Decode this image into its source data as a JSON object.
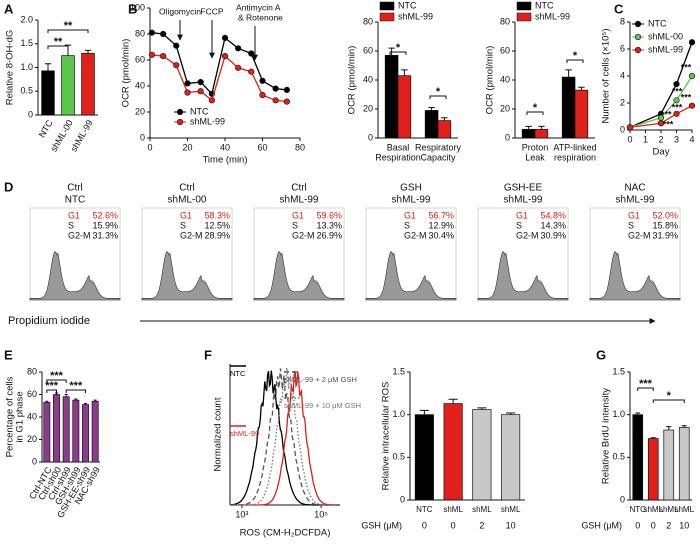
{
  "chart_data": [
    {
      "panel": "A",
      "type": "bar",
      "y_label": "Relative 8-OH-dG",
      "categories": [
        "NTC",
        "shML-00",
        "shML-99"
      ],
      "values": [
        0.93,
        1.25,
        1.3
      ],
      "errors": [
        0.15,
        0.22,
        0.06
      ],
      "colors": [
        "#000000",
        "#5cc64a",
        "#e0201b"
      ],
      "ylim": [
        0,
        2
      ],
      "yticks": [
        0,
        0.5,
        {
          "value": 1,
          "label": "1.0"
        },
        1.5,
        {
          "value": 2,
          "label": "2.0"
        }
      ],
      "annotations": [
        "**",
        "**"
      ]
    },
    {
      "panel": "B",
      "type": "line",
      "y_label": "OCR (pmol/min)",
      "x_label": "Time (min)",
      "x": [
        1,
        7,
        14,
        20,
        27,
        33,
        40,
        47,
        54,
        60,
        67,
        73
      ],
      "series": [
        {
          "name": "NTC",
          "color": "#000000",
          "values": [
            81,
            80,
            71,
            42,
            43,
            34,
            77,
            69,
            65,
            44,
            38,
            37
          ]
        },
        {
          "name": "shML-99",
          "color": "#e0201b",
          "values": [
            64,
            63,
            56,
            35,
            36,
            29,
            63,
            54,
            51,
            33,
            29,
            28
          ]
        }
      ],
      "xlim": [
        0,
        80
      ],
      "xticks": [
        0,
        20,
        40,
        60,
        80
      ],
      "ylim": [
        0,
        100
      ],
      "yticks": [
        0,
        20,
        40,
        60,
        80,
        100
      ],
      "annotations": [
        "Oligomycin",
        "FCCP",
        "Antimycin A",
        "& Rotenone"
      ]
    },
    {
      "type": "bar",
      "y_label": "OCR (pmol/min)",
      "categories": [
        [
          "Basal",
          "Respiration"
        ],
        [
          "Respiratory",
          "Capacity"
        ]
      ],
      "series": [
        {
          "name": "NTC",
          "color": "#000000",
          "values": [
            57,
            19
          ],
          "errors": [
            5,
            2
          ]
        },
        {
          "name": "shML-99",
          "color": "#e0201b",
          "values": [
            43,
            12
          ],
          "errors": [
            4,
            2
          ]
        }
      ],
      "ylim": [
        0,
        80
      ],
      "yticks": [
        0,
        20,
        40,
        60,
        80
      ],
      "annotations": [
        "*",
        "*"
      ]
    },
    {
      "type": "bar",
      "y_label": "OCR (pmol/min)",
      "categories": [
        [
          "Proton",
          "Leak"
        ],
        [
          "ATP-linked",
          "respiration"
        ]
      ],
      "series": [
        {
          "name": "NTC",
          "color": "#000000",
          "values": [
            6,
            42
          ],
          "errors": [
            2,
            5
          ]
        },
        {
          "name": "shML-99",
          "color": "#e0201b",
          "values": [
            6,
            33
          ],
          "errors": [
            2,
            2
          ]
        }
      ],
      "ylim": [
        0,
        80
      ],
      "yticks": [
        0,
        20,
        40,
        60,
        80
      ],
      "annotations": [
        "*",
        "*"
      ]
    },
    {
      "panel": "C",
      "type": "line",
      "y_label": "Number of cells (×10⁵)",
      "x_label": "Day",
      "x": [
        0,
        2,
        3,
        4
      ],
      "series": [
        {
          "name": "NTC",
          "color": "#000000",
          "values": [
            0.2,
            1.2,
            3.4,
            6.5
          ]
        },
        {
          "name": "shML-00",
          "color": "#5cc64a",
          "values": [
            0.2,
            0.9,
            2.2,
            4.0
          ]
        },
        {
          "name": "shML-99",
          "color": "#e0201b",
          "values": [
            0.2,
            0.5,
            1.2,
            1.8
          ]
        }
      ],
      "xlim": [
        0,
        4
      ],
      "xticks": [
        0,
        1,
        2,
        3,
        4
      ],
      "ylim": [
        0,
        8
      ],
      "yticks": [
        0,
        2,
        4,
        6,
        8
      ],
      "annotations": [
        "**",
        "***",
        "***",
        "***",
        "***",
        "***"
      ]
    },
    {
      "panel": "E",
      "type": "bar",
      "y_label": [
        "Percentage of cells",
        "in G1 phase"
      ],
      "categories": [
        "Ctrl-NTC",
        "Ctrl-sh00",
        "Ctrl-sh99",
        "GSH-sh99",
        "GSH-EE-sh99",
        "NAC-sh99"
      ],
      "values": [
        53,
        60,
        58,
        55,
        51,
        54
      ],
      "errors": [
        1,
        1.5,
        2,
        1,
        1,
        1
      ],
      "color": "#8e3a8e",
      "ylim": [
        0,
        80
      ],
      "yticks": [
        0,
        20,
        40,
        60,
        80
      ],
      "annotations": [
        "***",
        "***",
        "***"
      ]
    },
    {
      "panel": "F",
      "type": "density",
      "y_label": "Normalized count",
      "x_label": "ROS (CM-H₂DCFDA)",
      "series": [
        {
          "name": "NTC",
          "color": "#000000",
          "dash": "solid"
        },
        {
          "name": "shML-99",
          "color": "#e0201b",
          "dash": "solid"
        },
        {
          "name": "shML-99 + 2 μM GSH",
          "color": "#555555",
          "dash": "dashed"
        },
        {
          "name": "shML-99 + 10 μM GSH",
          "color": "#777777",
          "dash": "dotted"
        }
      ],
      "xscale": "log",
      "xlim": [
        500,
        300000
      ],
      "xticks": [
        {
          "value": 1000,
          "label": "10³"
        },
        {
          "value": 100000,
          "label": "10⁵"
        }
      ]
    },
    {
      "type": "bar",
      "y_label": "Relative intracellular ROS",
      "categories": [
        "NTC",
        "shML",
        "shML",
        "shML"
      ],
      "gsh_label": "GSH (μM)",
      "gsh": [
        0,
        0,
        2,
        10
      ],
      "values": [
        1.0,
        1.13,
        1.06,
        1.0
      ],
      "errors": [
        0.05,
        0.05,
        0.02,
        0.02
      ],
      "colors": [
        "#000000",
        "#e0201b",
        "#c8c8c8",
        "#c8c8c8"
      ],
      "ylim": [
        0,
        1.5
      ],
      "yticks": [
        0,
        0.5,
        {
          "value": 1,
          "label": "1.0"
        },
        1.5
      ]
    },
    {
      "panel": "G",
      "type": "bar",
      "y_label": "Relative BrdU intensity",
      "categories": [
        "NTC",
        "shML",
        "shML",
        "shML"
      ],
      "gsh_label": "GSH (μM)",
      "gsh": [
        0,
        0,
        2,
        10
      ],
      "values": [
        1.0,
        0.72,
        0.82,
        0.85
      ],
      "errors": [
        0.02,
        0.01,
        0.04,
        0.02
      ],
      "colors": [
        "#000000",
        "#e0201b",
        "#c8c8c8",
        "#c8c8c8"
      ],
      "ylim": [
        0,
        1.5
      ],
      "yticks": [
        0,
        0.5,
        {
          "value": 1,
          "label": "1.0"
        },
        1.5
      ],
      "annotations": [
        "***",
        "*"
      ]
    }
  ],
  "flow_panel": {
    "panel": "D",
    "x_label": "Propidium iodide",
    "samples": [
      {
        "title": [
          "Ctrl",
          "NTC"
        ],
        "rows": [
          {
            "phase": "G1",
            "percent": "52.6%"
          },
          {
            "phase": "S",
            "percent": "15.9%"
          },
          {
            "phase": "G2-M",
            "percent": "31.3%"
          }
        ]
      },
      {
        "title": [
          "Ctrl",
          "shML-00"
        ],
        "rows": [
          {
            "phase": "G1",
            "percent": "58.3%"
          },
          {
            "phase": "S",
            "percent": "12.5%"
          },
          {
            "phase": "G2-M",
            "percent": "28.9%"
          }
        ]
      },
      {
        "title": [
          "Ctrl",
          "shML-99"
        ],
        "rows": [
          {
            "phase": "G1",
            "percent": "59.6%"
          },
          {
            "phase": "S",
            "percent": "13.3%"
          },
          {
            "phase": "G2-M",
            "percent": "26.9%"
          }
        ]
      },
      {
        "title": [
          "GSH",
          "shML-99"
        ],
        "rows": [
          {
            "phase": "G1",
            "percent": "56.7%"
          },
          {
            "phase": "S",
            "percent": "12.9%"
          },
          {
            "phase": "G2-M",
            "percent": "30.4%"
          }
        ]
      },
      {
        "title": [
          "GSH-EE",
          "shML-99"
        ],
        "rows": [
          {
            "phase": "G1",
            "percent": "54.8%"
          },
          {
            "phase": "S",
            "percent": "14.3%"
          },
          {
            "phase": "G2-M",
            "percent": "30.9%"
          }
        ]
      },
      {
        "title": [
          "NAC",
          "shML-99"
        ],
        "rows": [
          {
            "phase": "G1",
            "percent": "52.0%"
          },
          {
            "phase": "S",
            "percent": "15.8%"
          },
          {
            "phase": "G2-M",
            "percent": "31.9%"
          }
        ]
      }
    ]
  }
}
